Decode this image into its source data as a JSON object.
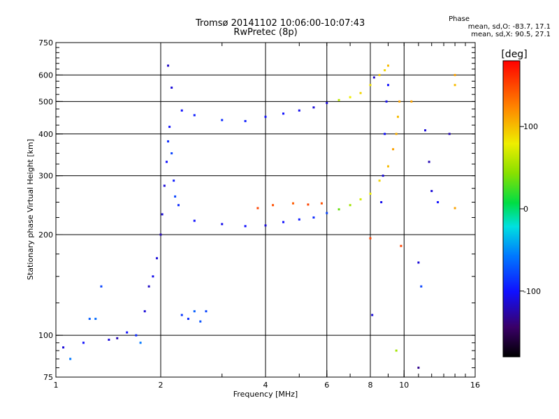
{
  "header": {
    "title_line1": "Tromsø 20141102 10:06:00-10:07:43",
    "title_line2": "RwPretec (8p)",
    "phase_label": "Phase",
    "phase_line_O": "mean, sd,O: -83.7, 17.1",
    "phase_line_X": "mean, sd,X: 90.5, 27.1"
  },
  "colorbar": {
    "unit": "[deg]",
    "tick_labels": [
      "100",
      "0",
      "-100"
    ],
    "tick_values": [
      100,
      0,
      -100
    ],
    "range": [
      -180,
      180
    ]
  },
  "chart_data": {
    "type": "scatter",
    "title": "Tromsø 20141102 10:06:00-10:07:43",
    "subtitle": "RwPretec (8p)",
    "xlabel": "Frequency [MHz]",
    "ylabel": "Stationary phase Virtual Height [km]",
    "x_scale": "log",
    "y_scale": "log",
    "xlim": [
      1,
      16
    ],
    "ylim": [
      75,
      750
    ],
    "x_ticks": [
      1,
      2,
      4,
      6,
      8,
      10,
      16
    ],
    "x_tick_labels": [
      "1",
      "2",
      "4",
      "6",
      "8",
      "10",
      "16"
    ],
    "y_ticks": [
      75,
      100,
      200,
      300,
      400,
      500,
      600,
      750
    ],
    "y_tick_labels": [
      "75",
      "100",
      "200",
      "300",
      "400",
      "500",
      "600",
      "750"
    ],
    "x_grid": [
      2,
      4,
      6,
      8,
      10
    ],
    "y_grid": [
      100,
      200,
      300,
      400,
      500,
      600
    ],
    "grid": true,
    "color_by": "phase [deg]",
    "series": [
      {
        "points": [
          [
            1.05,
            92,
            -110
          ],
          [
            1.1,
            85,
            -60
          ],
          [
            1.2,
            95,
            -100
          ],
          [
            1.25,
            112,
            -70
          ],
          [
            1.3,
            112,
            -65
          ],
          [
            1.35,
            140,
            -80
          ],
          [
            1.42,
            97,
            -110
          ],
          [
            1.5,
            98,
            -120
          ],
          [
            1.6,
            102,
            -100
          ],
          [
            1.7,
            100,
            -90
          ],
          [
            1.75,
            95,
            -60
          ],
          [
            1.8,
            118,
            -110
          ],
          [
            1.85,
            140,
            -115
          ],
          [
            1.9,
            150,
            -105
          ],
          [
            1.95,
            170,
            -110
          ],
          [
            2.0,
            200,
            -120
          ],
          [
            2.02,
            230,
            -110
          ],
          [
            2.05,
            280,
            -110
          ],
          [
            2.08,
            330,
            -100
          ],
          [
            2.1,
            380,
            -90
          ],
          [
            2.12,
            420,
            -100
          ],
          [
            2.15,
            350,
            -80
          ],
          [
            2.18,
            290,
            -95
          ],
          [
            2.2,
            260,
            -80
          ],
          [
            2.25,
            245,
            -90
          ],
          [
            2.3,
            115,
            -85
          ],
          [
            2.4,
            112,
            -90
          ],
          [
            2.5,
            118,
            -70
          ],
          [
            2.6,
            110,
            -75
          ],
          [
            2.7,
            118,
            -80
          ],
          [
            2.1,
            640,
            -115
          ],
          [
            2.15,
            550,
            -110
          ],
          [
            2.3,
            470,
            -100
          ],
          [
            2.5,
            455,
            -95
          ],
          [
            3.0,
            440,
            -90
          ],
          [
            3.5,
            437,
            -95
          ],
          [
            4.0,
            450,
            -100
          ],
          [
            4.5,
            460,
            -100
          ],
          [
            5.0,
            470,
            -105
          ],
          [
            5.5,
            480,
            -110
          ],
          [
            6.0,
            495,
            -110
          ],
          [
            6.5,
            505,
            60
          ],
          [
            7.0,
            515,
            80
          ],
          [
            7.5,
            530,
            90
          ],
          [
            8.0,
            560,
            85
          ],
          [
            8.5,
            600,
            95
          ],
          [
            8.8,
            620,
            90
          ],
          [
            9.0,
            640,
            100
          ],
          [
            2.5,
            220,
            -100
          ],
          [
            3.0,
            215,
            -105
          ],
          [
            3.5,
            212,
            -100
          ],
          [
            4.0,
            213,
            -110
          ],
          [
            4.5,
            218,
            -100
          ],
          [
            5.0,
            222,
            -95
          ],
          [
            5.5,
            225,
            -90
          ],
          [
            6.0,
            232,
            -80
          ],
          [
            6.5,
            238,
            30
          ],
          [
            7.0,
            245,
            50
          ],
          [
            7.5,
            255,
            70
          ],
          [
            8.0,
            265,
            80
          ],
          [
            8.5,
            290,
            90
          ],
          [
            9.0,
            320,
            100
          ],
          [
            9.3,
            360,
            110
          ],
          [
            9.5,
            400,
            105
          ],
          [
            9.6,
            450,
            100
          ],
          [
            9.7,
            500,
            110
          ],
          [
            3.8,
            240,
            150
          ],
          [
            4.2,
            245,
            145
          ],
          [
            4.8,
            248,
            140
          ],
          [
            5.3,
            246,
            150
          ],
          [
            5.8,
            248,
            145
          ],
          [
            8.6,
            250,
            -105
          ],
          [
            8.7,
            300,
            -110
          ],
          [
            8.8,
            400,
            -100
          ],
          [
            8.9,
            500,
            -105
          ],
          [
            9.0,
            560,
            -100
          ],
          [
            8.2,
            590,
            -115
          ],
          [
            8.1,
            115,
            -110
          ],
          [
            8.0,
            195,
            150
          ],
          [
            9.8,
            185,
            150
          ],
          [
            9.5,
            90,
            50
          ],
          [
            11.0,
            165,
            -110
          ],
          [
            11.2,
            140,
            -80
          ],
          [
            11.5,
            410,
            -110
          ],
          [
            11.8,
            330,
            -120
          ],
          [
            12.0,
            270,
            -110
          ],
          [
            12.5,
            250,
            -100
          ],
          [
            14.0,
            600,
            110
          ],
          [
            14.0,
            560,
            100
          ],
          [
            14.0,
            240,
            110
          ],
          [
            13.5,
            400,
            -120
          ],
          [
            10.5,
            500,
            110
          ],
          [
            11.0,
            80,
            -130
          ]
        ]
      }
    ]
  }
}
